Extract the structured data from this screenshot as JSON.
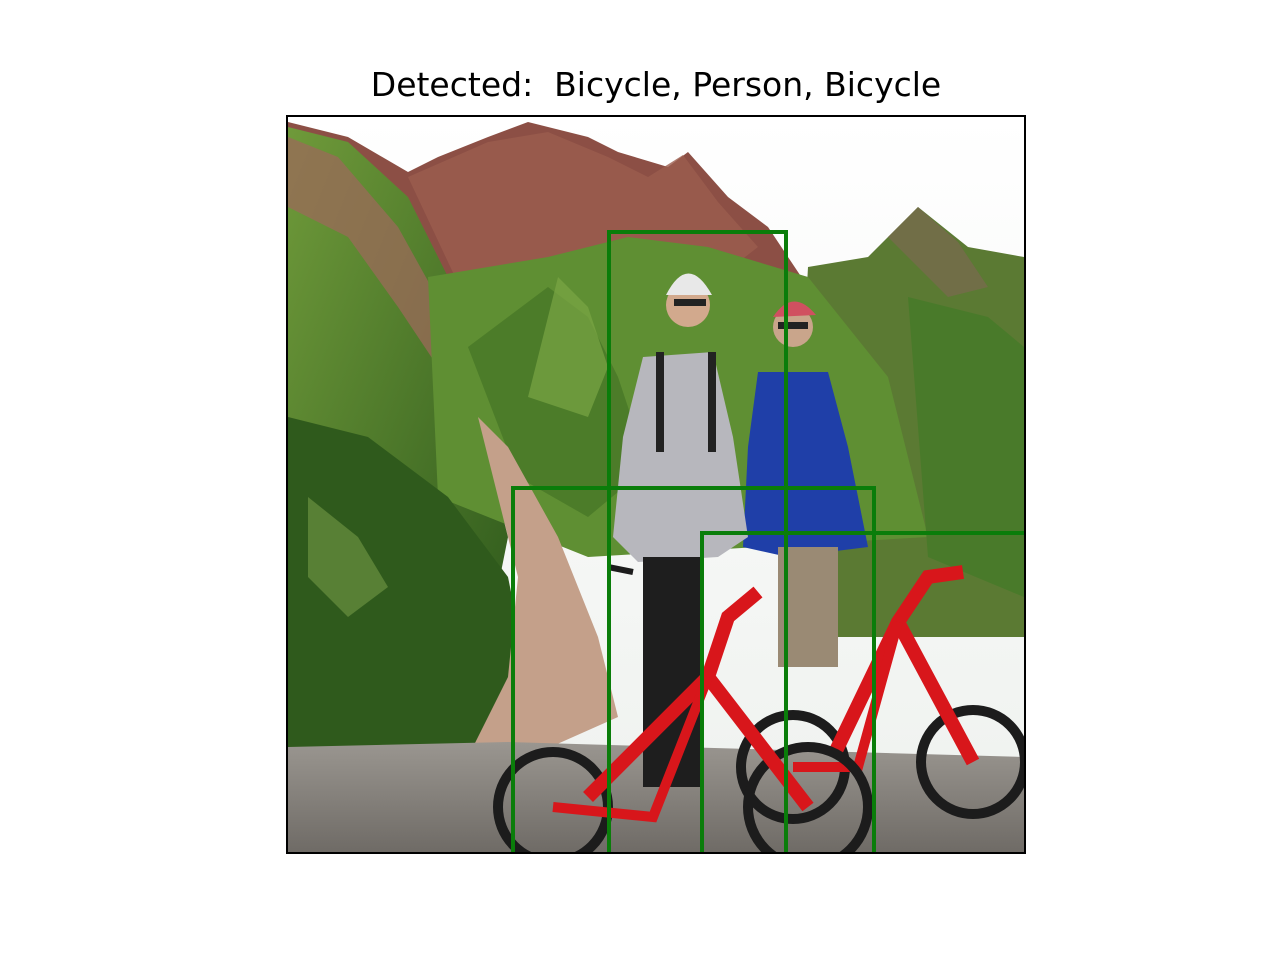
{
  "figure": {
    "title": "Detected:  Bicycle, Person, Bicycle"
  },
  "detections": [
    {
      "label": "Bicycle",
      "box_color": "#0a7d0a"
    },
    {
      "label": "Person",
      "box_color": "#0a7d0a"
    },
    {
      "label": "Bicycle",
      "box_color": "#0a7d0a"
    }
  ],
  "scene": {
    "description_icons": [
      "mountain-slopes",
      "rock-peaks",
      "gravel-ground",
      "person-grey-jacket",
      "person-blue-jacket",
      "red-bicycle-left",
      "red-bicycle-right"
    ]
  }
}
